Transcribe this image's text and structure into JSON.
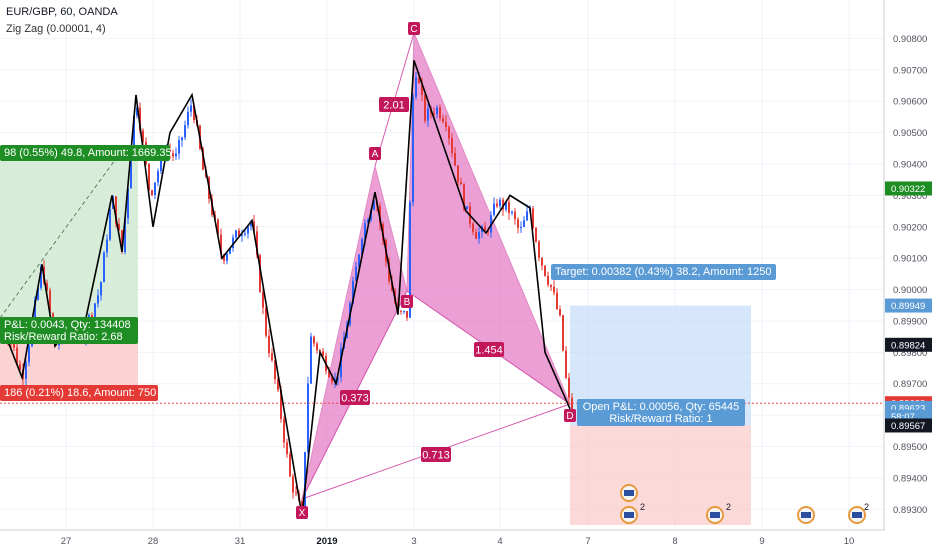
{
  "header": {
    "symbol_line": "EUR/GBP, 60, OANDA",
    "indicator_line": "Zig Zag (0.00001, 4)"
  },
  "colors": {
    "up_candle": "#2962ff",
    "down_candle": "#e53935",
    "zigzag": "#000000",
    "pattern_fill": "#e377c2",
    "pattern_label_bg": "#c2185b",
    "profit_zone": "#b7d3f7",
    "loss_zone": "#f9c4c4",
    "target_tag": "#5b9bd5",
    "stop_tag": "#e53935",
    "open_pnl_tag": "#5b9bd5",
    "left_profit_tag": "#1e8e24",
    "price_marker_red": "#e53935",
    "price_marker_green": "#1e8e24",
    "price_marker_black": "#131722",
    "price_marker_blue": "#5b9bd5"
  },
  "chart_data": {
    "type": "candlestick",
    "symbol": "EUR/GBP",
    "timeframe": "60",
    "source": "OANDA",
    "ylim": [
      0.8925,
      0.909
    ],
    "y_ticks": [
      "0.90800",
      "0.90700",
      "0.90600",
      "0.90500",
      "0.90400",
      "0.90300",
      "0.90200",
      "0.90100",
      "0.90000",
      "0.89900",
      "0.89800",
      "0.89700",
      "0.89600",
      "0.89500",
      "0.89400",
      "0.89300"
    ],
    "x_ticks": [
      "27",
      "28",
      "31",
      "2019",
      "3",
      "4",
      "7",
      "8",
      "9",
      "10"
    ],
    "price_markers": [
      {
        "label": "0.90322",
        "value": 0.90322,
        "style": "green"
      },
      {
        "label": "0.89949",
        "value": 0.89949,
        "style": "blue"
      },
      {
        "label": "0.89824",
        "value": 0.89824,
        "style": "black"
      },
      {
        "label": "0.89638",
        "value": 0.89638,
        "style": "red"
      },
      {
        "label": "0.89623",
        "value": 0.89623,
        "style": "blue"
      },
      {
        "label": "58:07",
        "value": 0.89595,
        "style": "blue"
      },
      {
        "label": "0.89567",
        "value": 0.89567,
        "style": "black"
      }
    ],
    "harmonic_pattern": {
      "points": [
        {
          "label": "X",
          "price": 0.8928
        },
        {
          "label": "A",
          "price": 0.9031
        },
        {
          "label": "B",
          "price": 0.8992
        },
        {
          "label": "C",
          "price": 0.9073
        },
        {
          "label": "D",
          "price": 0.8962
        }
      ],
      "ratios": [
        "2.01",
        "0.373",
        "1.454",
        "0.713"
      ]
    },
    "positions": [
      {
        "entry": 0.89567,
        "target_tag": "Target: 0.00382 (0.43%) 38.2, Amount: 1250",
        "open_pnl_tag_line1": "Open P&L: 0.00056, Qty: 65445",
        "open_pnl_tag_line2": "Risk/Reward Ratio: 1"
      },
      {
        "profit_tag": "98 (0.55%) 49.8, Amount: 1669.35",
        "pnl_tag_line1": "P&L: 0.0043, Qty: 134408",
        "pnl_tag_line2": "Risk/Reward Ratio: 2.68",
        "stop_tag": "186 (0.21%) 18.6, Amount: 750"
      }
    ],
    "event_badges": [
      {
        "count": "2"
      },
      {
        "count": "2"
      },
      {
        "count": "2"
      }
    ]
  }
}
